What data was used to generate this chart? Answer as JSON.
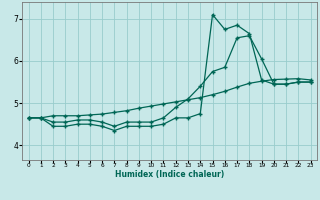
{
  "xlabel": "Humidex (Indice chaleur)",
  "bg_color": "#c8e8e8",
  "line_color": "#006655",
  "grid_color": "#99cccc",
  "xlim": [
    -0.5,
    23.5
  ],
  "ylim": [
    3.65,
    7.4
  ],
  "yticks": [
    4,
    5,
    6,
    7
  ],
  "xticks": [
    0,
    1,
    2,
    3,
    4,
    5,
    6,
    7,
    8,
    9,
    10,
    11,
    12,
    13,
    14,
    15,
    16,
    17,
    18,
    19,
    20,
    21,
    22,
    23
  ],
  "line1_x": [
    0,
    1,
    2,
    3,
    4,
    5,
    6,
    7,
    8,
    9,
    10,
    11,
    12,
    13,
    14,
    15,
    16,
    17,
    18,
    19,
    20,
    21,
    22,
    23
  ],
  "line1_y": [
    4.65,
    4.65,
    4.55,
    4.55,
    4.6,
    4.6,
    4.55,
    4.45,
    4.55,
    4.55,
    4.55,
    4.65,
    4.9,
    5.1,
    5.4,
    5.75,
    5.85,
    6.55,
    6.6,
    6.05,
    5.45,
    5.45,
    5.5,
    5.5
  ],
  "line2_x": [
    0,
    1,
    2,
    3,
    4,
    5,
    6,
    7,
    8,
    9,
    10,
    11,
    12,
    13,
    14,
    15,
    16,
    17,
    18,
    19,
    20,
    21,
    22,
    23
  ],
  "line2_y": [
    4.65,
    4.65,
    4.45,
    4.45,
    4.5,
    4.5,
    4.45,
    4.35,
    4.45,
    4.45,
    4.45,
    4.5,
    4.65,
    4.65,
    4.75,
    7.1,
    6.75,
    6.85,
    6.65,
    5.55,
    5.45,
    5.45,
    5.5,
    5.5
  ],
  "line3_x": [
    0,
    1,
    2,
    3,
    4,
    5,
    6,
    7,
    8,
    9,
    10,
    11,
    12,
    13,
    14,
    15,
    16,
    17,
    18,
    19,
    20,
    21,
    22,
    23
  ],
  "line3_y": [
    4.65,
    4.65,
    4.7,
    4.7,
    4.7,
    4.72,
    4.74,
    4.78,
    4.82,
    4.88,
    4.93,
    4.98,
    5.03,
    5.08,
    5.13,
    5.2,
    5.28,
    5.38,
    5.47,
    5.52,
    5.56,
    5.57,
    5.58,
    5.55
  ]
}
